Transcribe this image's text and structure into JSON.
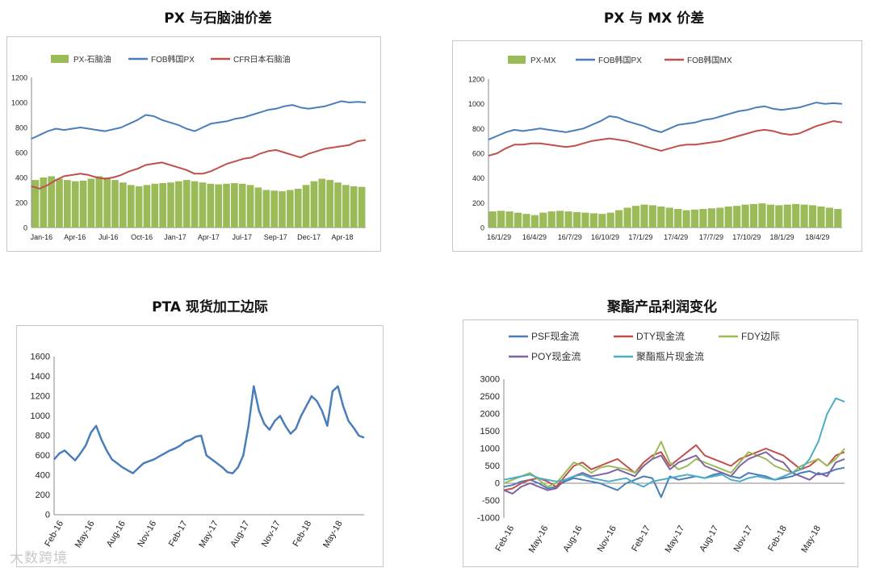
{
  "chart_data": [
    {
      "type": "bar+line",
      "title": "PX 与石脑油价差",
      "ylim": [
        0,
        1200
      ],
      "yticks": [
        0,
        200,
        400,
        600,
        800,
        1000,
        1200
      ],
      "x_tick_labels": [
        "Jan-16",
        "Apr-16",
        "Jul-16",
        "Oct-16",
        "Jan-17",
        "Apr-17",
        "Jul-17",
        "Sep-17",
        "Dec-17",
        "Apr-18"
      ],
      "legend_position": "top",
      "series": [
        {
          "name": "PX-石脑油",
          "kind": "bar",
          "color": "#9bbb59",
          "values": [
            380,
            400,
            410,
            390,
            380,
            370,
            375,
            390,
            410,
            400,
            380,
            360,
            340,
            330,
            340,
            350,
            355,
            360,
            370,
            380,
            370,
            360,
            350,
            345,
            350,
            355,
            350,
            340,
            320,
            300,
            295,
            290,
            300,
            310,
            340,
            370,
            390,
            380,
            360,
            340,
            330,
            325
          ]
        },
        {
          "name": "FOB韩国PX",
          "kind": "line",
          "color": "#4a7ebb",
          "values": [
            710,
            740,
            770,
            790,
            780,
            790,
            800,
            790,
            780,
            770,
            785,
            800,
            830,
            860,
            900,
            890,
            860,
            840,
            820,
            790,
            770,
            800,
            830,
            840,
            850,
            870,
            880,
            900,
            920,
            940,
            950,
            970,
            980,
            960,
            950,
            960,
            970,
            990,
            1010,
            1000,
            1005,
            1000
          ]
        },
        {
          "name": "CFR日本石脑油",
          "kind": "line",
          "color": "#c0504d",
          "values": [
            330,
            310,
            340,
            380,
            410,
            420,
            430,
            420,
            400,
            390,
            400,
            420,
            450,
            470,
            500,
            510,
            520,
            500,
            480,
            460,
            430,
            430,
            450,
            480,
            510,
            530,
            550,
            560,
            590,
            610,
            620,
            600,
            580,
            560,
            590,
            610,
            630,
            640,
            650,
            660,
            690,
            700
          ]
        }
      ]
    },
    {
      "type": "bar+line",
      "title": "PX 与 MX 价差",
      "ylim": [
        0,
        1200
      ],
      "yticks": [
        0,
        200,
        400,
        600,
        800,
        1000,
        1200
      ],
      "x_tick_labels": [
        "16/1/29",
        "16/4/29",
        "16/7/29",
        "16/10/29",
        "17/1/29",
        "17/4/29",
        "17/7/29",
        "17/10/29",
        "18/1/29",
        "18/4/29"
      ],
      "legend_position": "top",
      "series": [
        {
          "name": "PX-MX",
          "kind": "bar",
          "color": "#9bbb59",
          "values": [
            130,
            135,
            130,
            120,
            110,
            100,
            120,
            130,
            135,
            130,
            125,
            120,
            115,
            110,
            120,
            140,
            160,
            175,
            185,
            180,
            170,
            160,
            150,
            140,
            145,
            150,
            155,
            160,
            170,
            175,
            185,
            190,
            195,
            185,
            180,
            185,
            190,
            185,
            180,
            170,
            160,
            150
          ]
        },
        {
          "name": "FOB韩国PX",
          "kind": "line",
          "color": "#4a7ebb",
          "values": [
            710,
            740,
            770,
            790,
            780,
            790,
            800,
            790,
            780,
            770,
            785,
            800,
            830,
            860,
            900,
            890,
            860,
            840,
            820,
            790,
            770,
            800,
            830,
            840,
            850,
            870,
            880,
            900,
            920,
            940,
            950,
            970,
            980,
            960,
            950,
            960,
            970,
            990,
            1010,
            1000,
            1005,
            1000
          ]
        },
        {
          "name": "FOB韩国MX",
          "kind": "line",
          "color": "#c0504d",
          "values": [
            580,
            600,
            640,
            670,
            670,
            680,
            680,
            670,
            660,
            650,
            660,
            680,
            700,
            710,
            720,
            710,
            700,
            680,
            660,
            640,
            620,
            640,
            660,
            670,
            670,
            680,
            690,
            700,
            720,
            740,
            760,
            780,
            790,
            780,
            760,
            750,
            760,
            790,
            820,
            840,
            860,
            850
          ]
        }
      ]
    },
    {
      "type": "line",
      "title": "PTA 现货加工边际",
      "ylim": [
        0,
        1600
      ],
      "yticks": [
        0,
        200,
        400,
        600,
        800,
        1000,
        1200,
        1400,
        1600
      ],
      "x_tick_labels": [
        "Feb-16",
        "May-16",
        "Aug-16",
        "Nov-16",
        "Feb-17",
        "May-17",
        "Aug-17",
        "Nov-17",
        "Feb-18",
        "May-18"
      ],
      "series": [
        {
          "name": "",
          "color": "#4a7ebb",
          "values": [
            560,
            620,
            650,
            600,
            550,
            620,
            700,
            830,
            900,
            760,
            650,
            560,
            520,
            480,
            450,
            420,
            470,
            520,
            540,
            560,
            590,
            620,
            650,
            670,
            700,
            740,
            760,
            790,
            800,
            600,
            560,
            520,
            480,
            430,
            420,
            480,
            600,
            900,
            1300,
            1050,
            920,
            860,
            950,
            1000,
            900,
            820,
            870,
            1000,
            1100,
            1200,
            1150,
            1050,
            900,
            1250,
            1300,
            1100,
            950,
            880,
            800,
            780
          ]
        }
      ]
    },
    {
      "type": "line",
      "title": "聚酯产品利润变化",
      "ylim": [
        -1000,
        3000
      ],
      "yticks": [
        -1000,
        -500,
        0,
        500,
        1000,
        1500,
        2000,
        2500,
        3000
      ],
      "x_tick_labels": [
        "Feb-16",
        "May-16",
        "Aug-16",
        "Nov-16",
        "Feb-17",
        "May-17",
        "Aug-17",
        "Nov-17",
        "Feb-18",
        "May-18"
      ],
      "legend_position": "top",
      "series": [
        {
          "name": "PSF现金流",
          "color": "#4a7ebb",
          "values": [
            -100,
            -50,
            50,
            100,
            0,
            -150,
            -100,
            50,
            150,
            100,
            50,
            0,
            -100,
            -200,
            0,
            100,
            200,
            150,
            -400,
            200,
            100,
            150,
            200,
            150,
            250,
            300,
            200,
            150,
            300,
            250,
            200,
            100,
            150,
            200,
            300,
            350,
            250,
            300,
            400,
            450
          ]
        },
        {
          "name": "DTY现金流",
          "color": "#c0504d",
          "values": [
            -200,
            -150,
            0,
            100,
            150,
            50,
            -100,
            200,
            500,
            600,
            400,
            500,
            600,
            700,
            500,
            300,
            600,
            800,
            900,
            500,
            700,
            900,
            1100,
            800,
            700,
            600,
            500,
            700,
            800,
            900,
            1000,
            900,
            800,
            600,
            400,
            500,
            700,
            500,
            800,
            900
          ]
        },
        {
          "name": "FDY边际",
          "color": "#9bbb59",
          "values": [
            0,
            100,
            200,
            300,
            100,
            -100,
            0,
            300,
            600,
            500,
            300,
            450,
            500,
            450,
            400,
            300,
            500,
            700,
            1200,
            600,
            400,
            500,
            700,
            600,
            500,
            400,
            300,
            600,
            900,
            800,
            700,
            500,
            400,
            300,
            500,
            600,
            700,
            500,
            700,
            1000
          ]
        },
        {
          "name": "POY现金流",
          "color": "#8064a2",
          "values": [
            -200,
            -300,
            -100,
            0,
            -100,
            -200,
            -150,
            100,
            200,
            300,
            200,
            250,
            300,
            400,
            300,
            200,
            500,
            700,
            800,
            400,
            600,
            700,
            800,
            500,
            400,
            300,
            200,
            500,
            700,
            800,
            900,
            700,
            600,
            300,
            200,
            100,
            300,
            200,
            600,
            700
          ]
        },
        {
          "name": "聚酯瓶片现金流",
          "color": "#4bacc6",
          "values": [
            100,
            150,
            200,
            250,
            150,
            100,
            50,
            100,
            200,
            250,
            150,
            100,
            50,
            100,
            150,
            0,
            -100,
            50,
            100,
            150,
            200,
            250,
            200,
            150,
            200,
            250,
            100,
            50,
            150,
            200,
            150,
            100,
            200,
            300,
            400,
            700,
            1200,
            2000,
            2450,
            2350
          ]
        }
      ]
    }
  ],
  "watermark": "大数跨境"
}
